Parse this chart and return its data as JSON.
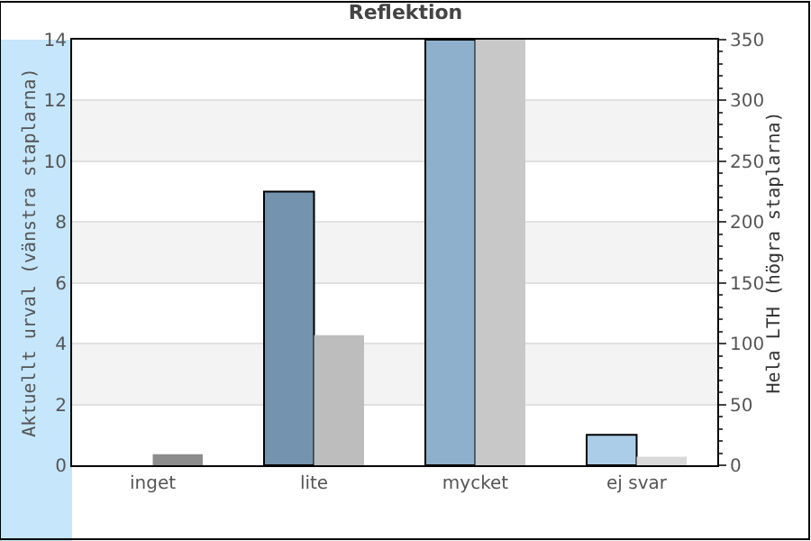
{
  "chart_data": {
    "type": "bar",
    "title": "Reflektion",
    "categories": [
      "inget",
      "lite",
      "mycket",
      "ej svar"
    ],
    "ylabel": "Aktuellt urval (vänstra staplarna)",
    "y2label": "Hela LTH (högra staplarna)",
    "series": [
      {
        "colors": [
          "#7393ae",
          "#7393ae",
          "#8fb0cc",
          "#abcde8"
        ],
        "values": [
          0,
          9,
          14,
          1
        ]
      },
      {
        "axis": "y2",
        "colors": [
          "#8c8c8c",
          "#bdbdbd",
          "#c8c8c8",
          "#d9d9d9"
        ],
        "values": [
          9,
          107,
          350,
          7
        ]
      }
    ],
    "ylim": [
      0,
      14
    ],
    "yticks": [
      0,
      2,
      4,
      6,
      8,
      10,
      12,
      14
    ],
    "y2lim": [
      0,
      350
    ],
    "y2ticks": [
      0,
      50,
      100,
      150,
      200,
      250,
      300,
      350
    ],
    "grid": "y"
  }
}
